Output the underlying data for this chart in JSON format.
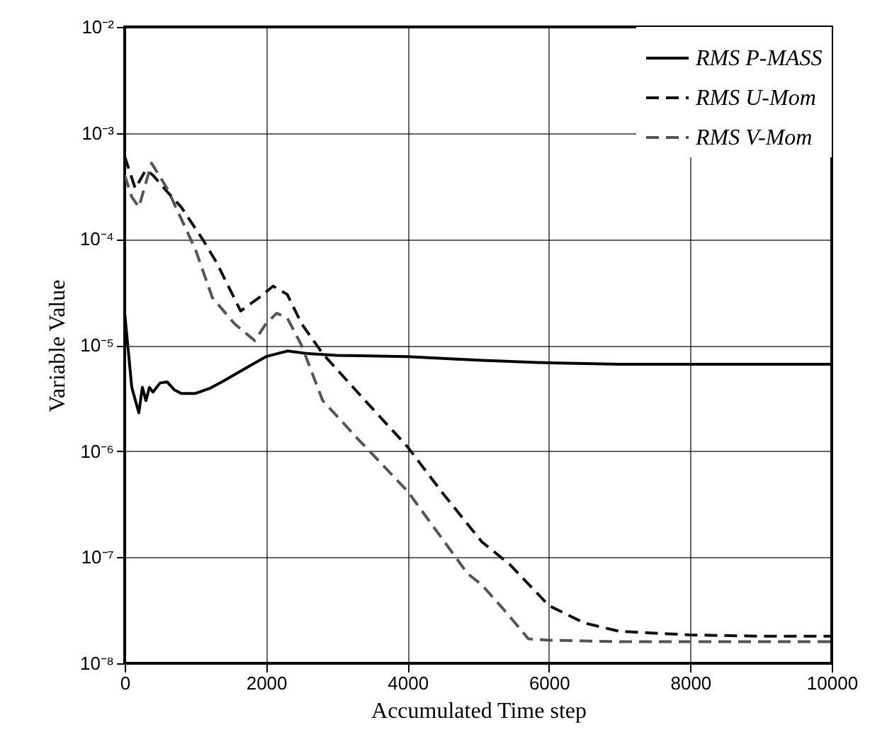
{
  "chart_data": {
    "type": "line",
    "xlabel": "Accumulated Time step",
    "ylabel": "Variable Value",
    "xlim": [
      0,
      10000
    ],
    "xticks": [
      0,
      2000,
      4000,
      6000,
      8000,
      10000
    ],
    "ylim": [
      1e-08,
      0.01
    ],
    "log": "y",
    "yticks": [
      {
        "value": 1e-08,
        "label": "10⁻⁸"
      },
      {
        "value": 1e-07,
        "label": "10⁻⁷"
      },
      {
        "value": 1e-06,
        "label": "10⁻⁶"
      },
      {
        "value": 1e-05,
        "label": "10⁻⁵"
      },
      {
        "value": 0.0001,
        "label": "10⁻⁴"
      },
      {
        "value": 0.001,
        "label": "10⁻³"
      },
      {
        "value": 0.01,
        "label": "10⁻²"
      }
    ],
    "grid": true,
    "legend": "top right",
    "series": [
      {
        "name": "RMS P-MASS",
        "color": "#000000",
        "line_style": "solid",
        "x": [
          0,
          50,
          100,
          200,
          250,
          300,
          350,
          400,
          500,
          600,
          700,
          800,
          1000,
          1200,
          1400,
          1700,
          2000,
          2300,
          2600,
          3000,
          4000,
          5000,
          6000,
          7000,
          8000,
          9000,
          10000
        ],
        "values": [
          2e-05,
          9e-06,
          4e-06,
          2.3e-06,
          4e-06,
          3e-06,
          4e-06,
          3.6e-06,
          4.4e-06,
          4.5e-06,
          3.8e-06,
          3.5e-06,
          3.5e-06,
          3.9e-06,
          4.6e-06,
          6e-06,
          7.8e-06,
          8.8e-06,
          8.3e-06,
          8e-06,
          7.8e-06,
          7.2e-06,
          6.8e-06,
          6.6e-06,
          6.6e-06,
          6.6e-06,
          6.6e-06
        ]
      },
      {
        "name": "RMS U-Mom",
        "color": "#111111",
        "line_style": "dashed",
        "x": [
          0,
          150,
          300,
          400,
          600,
          800,
          1100,
          1300,
          1640,
          1900,
          2100,
          2300,
          2500,
          2800,
          3400,
          4000,
          4500,
          5050,
          5450,
          6000,
          6500,
          7000,
          8000,
          9000,
          10000
        ],
        "values": [
          0.0006,
          0.0003,
          0.00045,
          0.0004,
          0.00028,
          0.0002,
          0.0001,
          6e-05,
          2.1e-05,
          2.8e-05,
          3.6e-05,
          3e-05,
          1.6e-05,
          8.3e-06,
          3e-06,
          1.1e-06,
          4e-07,
          1.4e-07,
          8.5e-08,
          3.5e-08,
          2.4e-08,
          2e-08,
          1.85e-08,
          1.8e-08,
          1.8e-08
        ]
      },
      {
        "name": "RMS V-Mom",
        "color": "#555555",
        "line_style": "dashed",
        "x": [
          0,
          100,
          200,
          380,
          600,
          1000,
          1240,
          1550,
          1840,
          2000,
          2150,
          2300,
          2500,
          2800,
          3300,
          4000,
          4850,
          5050,
          5400,
          5710,
          6000,
          7000,
          8000,
          9000,
          10000
        ],
        "values": [
          0.0004,
          0.00025,
          0.0002,
          0.00052,
          0.0003,
          8e-05,
          2.8e-05,
          1.6e-05,
          1.1e-05,
          1.6e-05,
          2e-05,
          1.8e-05,
          1e-05,
          3e-06,
          1.3e-06,
          4.2e-07,
          7e-08,
          5.5e-08,
          3e-08,
          1.7e-08,
          1.65e-08,
          1.6e-08,
          1.6e-08,
          1.6e-08,
          1.6e-08
        ]
      }
    ]
  }
}
